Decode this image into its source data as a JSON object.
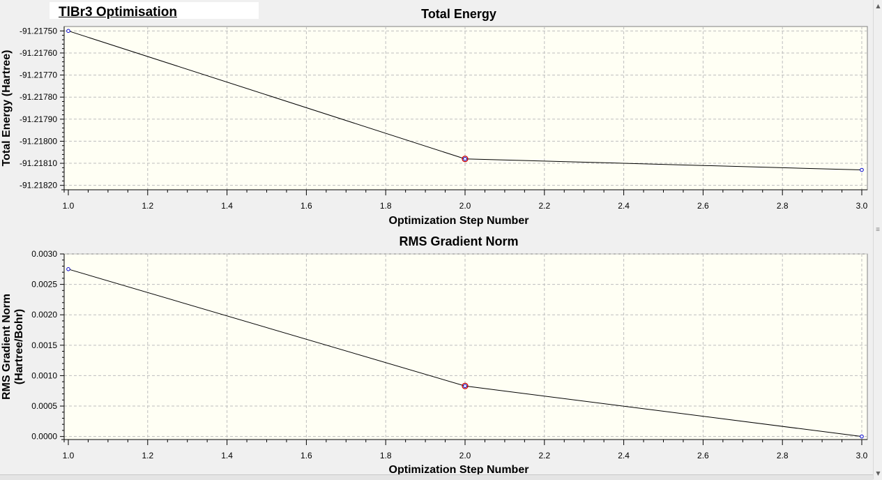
{
  "window": {
    "note_text": "TlBr3 Optimisation"
  },
  "icons": {
    "scroll_up": "triangle-up",
    "scroll_down": "triangle-down",
    "grip": "three-lines"
  },
  "colors": {
    "plot_background": "#fffff4",
    "line": "#000000",
    "marker": "#0000cc",
    "highlight_marker": "#cc0000",
    "grid": "#bdbdbd"
  },
  "chart_data": [
    {
      "type": "line",
      "title": "Total Energy",
      "xlabel": "Optimization Step Number",
      "ylabel": "Total Energy (Hartree)",
      "x": [
        1.0,
        2.0,
        3.0
      ],
      "series": [
        {
          "values": [
            -91.2175,
            -91.21808,
            -91.21813
          ]
        }
      ],
      "highlight_index": 1,
      "xlim": [
        1.0,
        3.0
      ],
      "ylim": [
        -91.21822,
        -91.21748
      ],
      "x_ticks": [
        1.0,
        1.2,
        1.4,
        1.6,
        1.8,
        2.0,
        2.2,
        2.4,
        2.6,
        2.8,
        3.0
      ],
      "x_tick_labels": [
        "1.0",
        "1.2",
        "1.4",
        "1.6",
        "1.8",
        "2.0",
        "2.2",
        "2.4",
        "2.6",
        "2.8",
        "3.0"
      ],
      "y_ticks": [
        -91.2175,
        -91.2176,
        -91.2177,
        -91.2178,
        -91.2179,
        -91.218,
        -91.2181,
        -91.2182
      ],
      "y_tick_labels": [
        "-91.21750",
        "-91.21760",
        "-91.21770",
        "-91.21780",
        "-91.21790",
        "-91.21800",
        "-91.21810",
        "-91.21820"
      ],
      "grid": true
    },
    {
      "type": "line",
      "title": "RMS Gradient Norm",
      "xlabel": "Optimization Step Number",
      "ylabel": [
        "RMS Gradient Norm",
        "(Hartree/Bohr)"
      ],
      "x": [
        1.0,
        2.0,
        3.0
      ],
      "series": [
        {
          "values": [
            0.00275,
            0.00083,
            0.0
          ]
        }
      ],
      "highlight_index": 1,
      "xlim": [
        1.0,
        3.0
      ],
      "ylim": [
        -5e-05,
        0.003
      ],
      "x_ticks": [
        1.0,
        1.2,
        1.4,
        1.6,
        1.8,
        2.0,
        2.2,
        2.4,
        2.6,
        2.8,
        3.0
      ],
      "x_tick_labels": [
        "1.0",
        "1.2",
        "1.4",
        "1.6",
        "1.8",
        "2.0",
        "2.2",
        "2.4",
        "2.6",
        "2.8",
        "3.0"
      ],
      "y_ticks": [
        0.0,
        0.0005,
        0.001,
        0.0015,
        0.002,
        0.0025,
        0.003
      ],
      "y_tick_labels": [
        "0.0000",
        "0.0005",
        "0.0010",
        "0.0015",
        "0.0020",
        "0.0025",
        "0.0030"
      ],
      "grid": true
    }
  ]
}
